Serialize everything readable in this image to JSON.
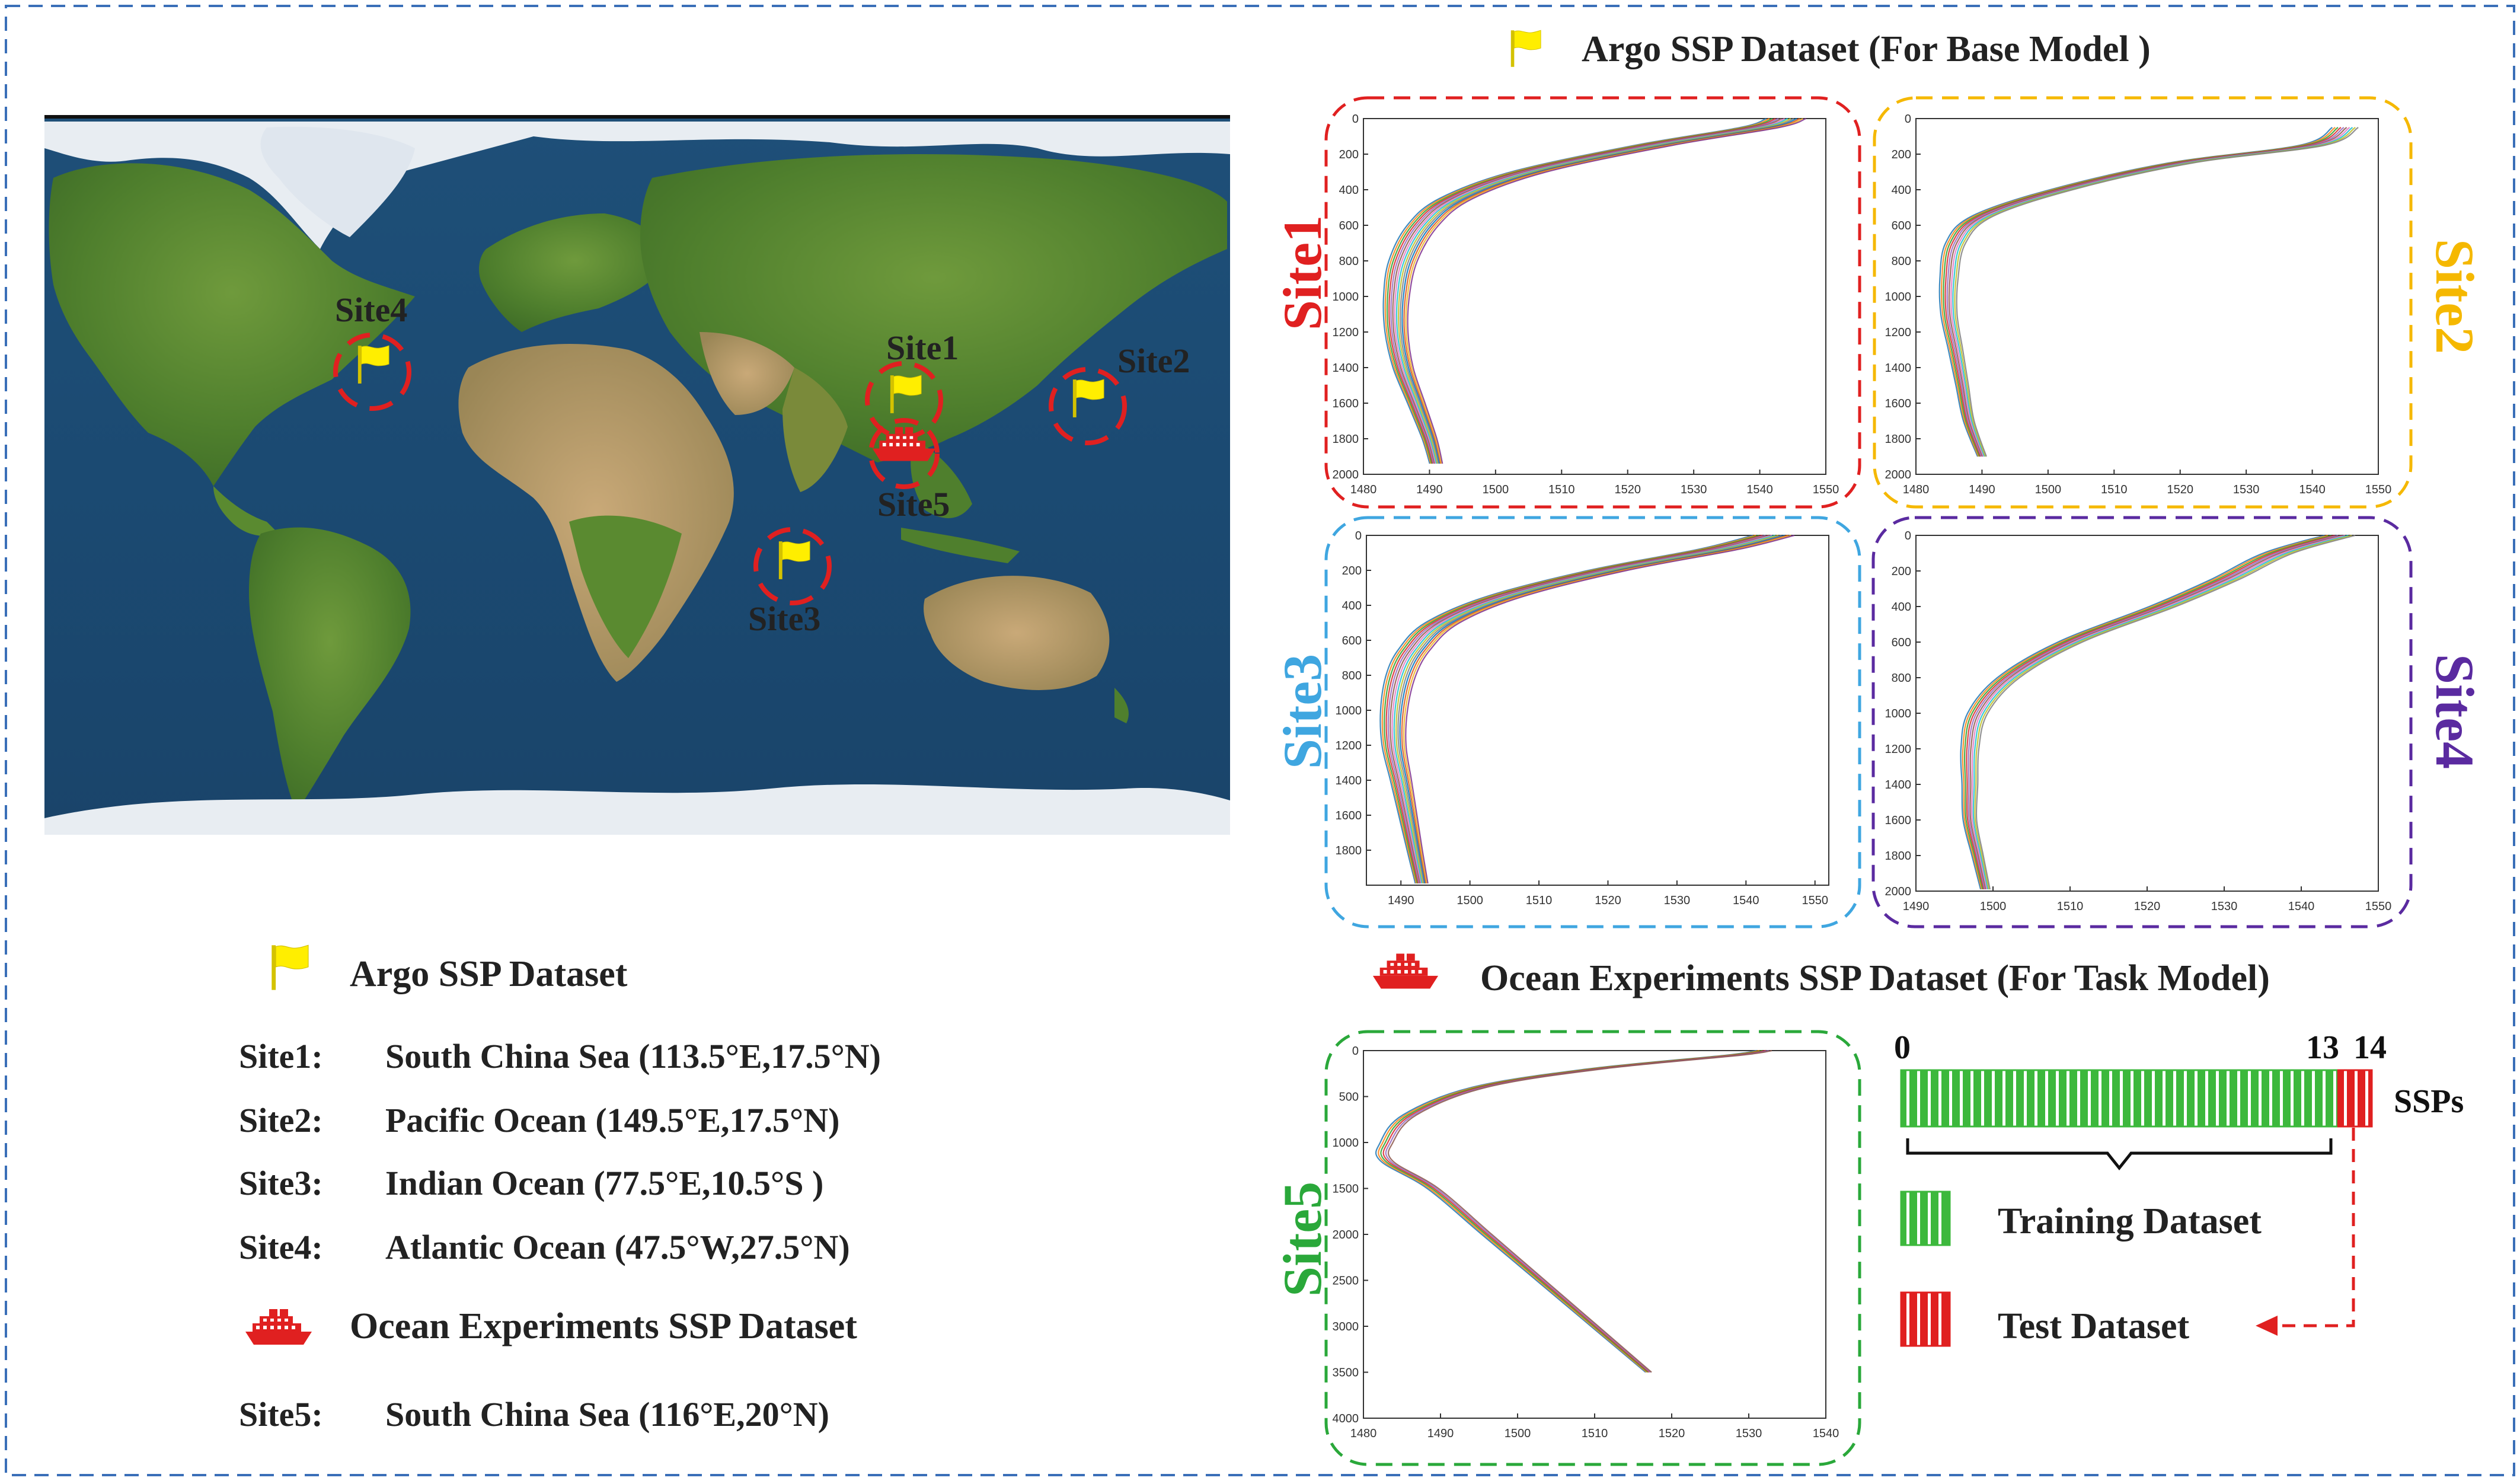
{
  "colors": {
    "frame": "#3a6fb8",
    "site1": "#e02020",
    "site2": "#f5b800",
    "site3": "#3fa6e0",
    "site4": "#5a2aa0",
    "site5": "#2aa83a",
    "flag": "#ffee00",
    "ship": "#e02020",
    "train": "#3cb83c",
    "test": "#e02020"
  },
  "icons": {
    "flag": "flag-icon",
    "ship": "ship-icon",
    "marker": "dashed-circle-marker"
  },
  "header": {
    "argo_title": "Argo SSP Dataset (For Base Model )",
    "ocean_title": "Ocean Experiments SSP Dataset (For Task Model)"
  },
  "map": {
    "label_site1": "Site1",
    "label_site2": "Site2",
    "label_site3": "Site3",
    "label_site4": "Site4",
    "label_site5": "Site5"
  },
  "legend": {
    "argo_label": "Argo SSP Dataset",
    "argo_sites": [
      {
        "site": "Site1:",
        "desc": "South China Sea (113.5°E,17.5°N)"
      },
      {
        "site": "Site2:",
        "desc": "Pacific Ocean (149.5°E,17.5°N)"
      },
      {
        "site": "Site3:",
        "desc": "Indian Ocean (77.5°E,10.5°S )"
      },
      {
        "site": "Site4:",
        "desc": "Atlantic Ocean (47.5°W,27.5°N)"
      }
    ],
    "ocean_label": "Ocean Experiments SSP Dataset",
    "ocean_sites": [
      {
        "site": "Site5:",
        "desc": "South China Sea (116°E,20°N)"
      }
    ]
  },
  "panels": {
    "site1": {
      "label": "Site1"
    },
    "site2": {
      "label": "Site2"
    },
    "site3": {
      "label": "Site3"
    },
    "site4": {
      "label": "Site4"
    },
    "site5": {
      "label": "Site5"
    }
  },
  "split": {
    "tick_0": "0",
    "tick_13": "13",
    "tick_14": "14",
    "unit": "SSPs",
    "train_count": 13,
    "total_count": 14,
    "train_label": "Training Dataset",
    "test_label": "Test Dataset"
  },
  "chart_data": [
    {
      "name": "site1",
      "type": "line",
      "x_ticks": [
        1480,
        1490,
        1500,
        1510,
        1520,
        1530,
        1540,
        1550
      ],
      "y_ticks": [
        0,
        200,
        400,
        600,
        800,
        1000,
        1200,
        1400,
        1600,
        1800,
        2000
      ],
      "xlim": [
        1480,
        1550
      ],
      "ylim": [
        0,
        2000
      ],
      "y_reversed": true,
      "profile": [
        [
          1544,
          0
        ],
        [
          1540,
          50
        ],
        [
          1524,
          150
        ],
        [
          1505,
          300
        ],
        [
          1494,
          450
        ],
        [
          1489,
          600
        ],
        [
          1486,
          800
        ],
        [
          1485,
          1000
        ],
        [
          1485,
          1200
        ],
        [
          1486,
          1400
        ],
        [
          1488,
          1600
        ],
        [
          1490,
          1800
        ],
        [
          1491,
          1940
        ]
      ],
      "spread": 3
    },
    {
      "name": "site2",
      "type": "line",
      "x_ticks": [
        1480,
        1490,
        1500,
        1510,
        1520,
        1530,
        1540,
        1550
      ],
      "y_ticks": [
        0,
        200,
        400,
        600,
        800,
        1000,
        1200,
        1400,
        1600,
        1800,
        2000
      ],
      "xlim": [
        1480,
        1550
      ],
      "ylim": [
        0,
        2000
      ],
      "y_reversed": true,
      "profile": [
        [
          1545,
          50
        ],
        [
          1540,
          150
        ],
        [
          1520,
          250
        ],
        [
          1502,
          400
        ],
        [
          1490,
          550
        ],
        [
          1486,
          700
        ],
        [
          1485,
          900
        ],
        [
          1485,
          1100
        ],
        [
          1486,
          1300
        ],
        [
          1487,
          1500
        ],
        [
          1488,
          1700
        ],
        [
          1490,
          1900
        ]
      ],
      "spread": 2
    },
    {
      "name": "site3",
      "type": "line",
      "x_ticks": [
        1490,
        1500,
        1510,
        1520,
        1530,
        1540,
        1550
      ],
      "y_ticks": [
        0,
        200,
        400,
        600,
        800,
        1000,
        1200,
        1400,
        1600,
        1800
      ],
      "xlim": [
        1485,
        1552
      ],
      "ylim": [
        0,
        2000
      ],
      "y_reversed": true,
      "profile": [
        [
          1544,
          0
        ],
        [
          1536,
          80
        ],
        [
          1520,
          200
        ],
        [
          1505,
          350
        ],
        [
          1496,
          500
        ],
        [
          1492,
          650
        ],
        [
          1490,
          800
        ],
        [
          1489,
          1000
        ],
        [
          1489,
          1200
        ],
        [
          1490,
          1400
        ],
        [
          1491,
          1600
        ],
        [
          1492,
          1800
        ],
        [
          1493,
          1990
        ]
      ],
      "spread": 3
    },
    {
      "name": "site4",
      "type": "line",
      "x_ticks": [
        1490,
        1500,
        1510,
        1520,
        1530,
        1540,
        1550
      ],
      "y_ticks": [
        0,
        200,
        400,
        600,
        800,
        1000,
        1200,
        1400,
        1600,
        1800,
        2000
      ],
      "xlim": [
        1490,
        1550
      ],
      "ylim": [
        0,
        2000
      ],
      "y_reversed": true,
      "profile": [
        [
          1545,
          0
        ],
        [
          1537,
          100
        ],
        [
          1530,
          250
        ],
        [
          1522,
          400
        ],
        [
          1510,
          600
        ],
        [
          1502,
          800
        ],
        [
          1498,
          1000
        ],
        [
          1497,
          1200
        ],
        [
          1497,
          1400
        ],
        [
          1497,
          1600
        ],
        [
          1498,
          1800
        ],
        [
          1499,
          1990
        ]
      ],
      "spread": 2
    },
    {
      "name": "site5",
      "type": "line",
      "x_ticks": [
        1480,
        1490,
        1500,
        1510,
        1520,
        1530,
        1540
      ],
      "y_ticks": [
        0,
        500,
        1000,
        1500,
        2000,
        2500,
        3000,
        3500,
        4000
      ],
      "xlim": [
        1480,
        1540
      ],
      "ylim": [
        0,
        4000
      ],
      "y_reversed": true,
      "profile": [
        [
          1532,
          0
        ],
        [
          1528,
          50
        ],
        [
          1510,
          200
        ],
        [
          1495,
          400
        ],
        [
          1486,
          700
        ],
        [
          1483,
          1000
        ],
        [
          1483,
          1200
        ],
        [
          1489,
          1500
        ],
        [
          1496,
          2000
        ],
        [
          1503,
          2500
        ],
        [
          1510,
          3000
        ],
        [
          1517,
          3500
        ]
      ],
      "spread": 1
    }
  ]
}
